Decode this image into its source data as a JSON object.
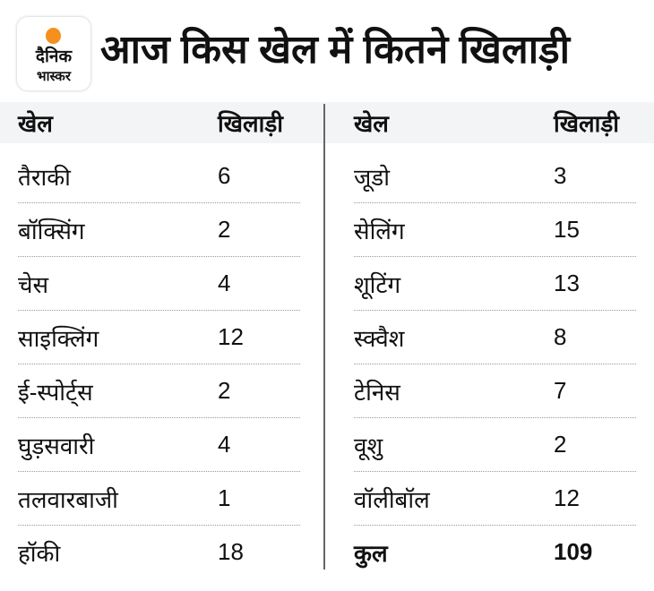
{
  "logo": {
    "line1": "दैनिक",
    "line2": "भास्कर"
  },
  "title": "आज किस खेल में कितने खिलाड़ी",
  "headers": {
    "sport": "खेल",
    "players": "खिलाड़ी"
  },
  "left": [
    {
      "sport": "तैराकी",
      "players": "6"
    },
    {
      "sport": "बॉक्सिंग",
      "players": "2"
    },
    {
      "sport": "चेस",
      "players": "4"
    },
    {
      "sport": "साइक्लिंग",
      "players": "12"
    },
    {
      "sport": "ई-स्पोर्ट्स",
      "players": "2"
    },
    {
      "sport": "घुड़सवारी",
      "players": "4"
    },
    {
      "sport": "तलवारबाजी",
      "players": "1"
    },
    {
      "sport": "हॉकी",
      "players": "18"
    }
  ],
  "right": [
    {
      "sport": "जूडो",
      "players": "3"
    },
    {
      "sport": "सेलिंग",
      "players": "15"
    },
    {
      "sport": "शूटिंग",
      "players": "13"
    },
    {
      "sport": "स्क्वैश",
      "players": "8"
    },
    {
      "sport": "टेनिस",
      "players": "7"
    },
    {
      "sport": "वूशु",
      "players": "2"
    },
    {
      "sport": "वॉलीबॉल",
      "players": "12"
    },
    {
      "sport": "कुल",
      "players": "109"
    }
  ]
}
